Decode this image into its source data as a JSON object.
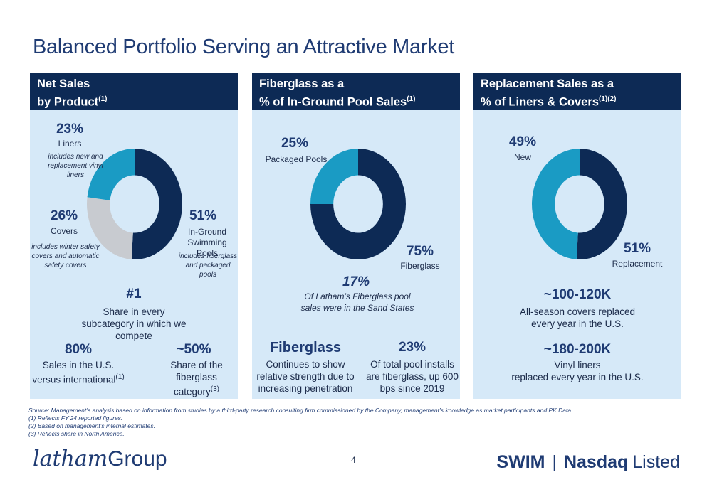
{
  "title": "Balanced Portfolio Serving an Attractive Market",
  "colors": {
    "navy": "#0d2a55",
    "teal": "#1a9bc4",
    "gray": "#c8cbd0",
    "panel_bg": "#d6e9f8"
  },
  "panel1": {
    "head_line1": "Net Sales",
    "head_line2": "by Product",
    "head_sup": "(1)",
    "liners_pct": "23%",
    "liners_label": "Liners",
    "liners_note": "includes new and replacement vinyl liners",
    "covers_pct": "26%",
    "covers_label": "Covers",
    "covers_note": "includes winter safety covers and automatic safety covers",
    "pools_pct": "51%",
    "pools_label": "In-Ground Swimming Pools",
    "pools_note": "includes fiberglass and packaged pools",
    "rank": "#1",
    "rank_text": "Share in every subcategory in which we compete",
    "us_pct": "80%",
    "us_text": "Sales in the U.S. versus international",
    "us_sup": "(1)",
    "share_pct": "~50%",
    "share_text": "Share of the fiberglass category",
    "share_sup": "(3)"
  },
  "panel2": {
    "head_line1": "Fiberglass as a",
    "head_line2": "% of In-Ground Pool Sales",
    "head_sup": "(1)",
    "packaged_pct": "25%",
    "packaged_label": "Packaged Pools",
    "fiberglass_pct": "75%",
    "fiberglass_label": "Fiberglass",
    "sand_pct": "17%",
    "sand_text": "Of Latham’s Fiberglass pool sales were in the Sand States",
    "fg_title": "Fiberglass",
    "fg_text": "Continues to show relative strength due to increasing penetration",
    "installs_pct": "23%",
    "installs_text": "Of total pool installs are fiberglass, up 600 bps since 2019"
  },
  "panel3": {
    "head_line1": "Replacement Sales as a",
    "head_line2": "% of Liners & Covers",
    "head_sup": "(1)(2)",
    "new_pct": "49%",
    "new_label": "New",
    "repl_pct": "51%",
    "repl_label": "Replacement",
    "covers_range": "~100-120K",
    "covers_text": "All-season covers replaced every year in the U.S.",
    "liners_range": "~180-200K",
    "liners_text1": "Vinyl liners",
    "liners_text2": "replaced every year in the U.S."
  },
  "footnotes": {
    "source": "Source: Management’s analysis based on information from studies by a third-party research consulting firm commissioned by the Company, management’s knowledge as market participants and PK Data.",
    "n1": "(1) Reflects FY’24 reported figures.",
    "n2": "(2) Based on management’s internal estimates.",
    "n3": "(3) Reflects share in North America."
  },
  "footer": {
    "logo_word": "latham",
    "logo_group": "Group",
    "page": "4",
    "ticker_swim": "SWIM",
    "ticker_sep": "|",
    "ticker_nasdaq": "Nasdaq",
    "ticker_listed": "Listed"
  },
  "chart_data": [
    {
      "type": "pie",
      "categories": [
        "In-Ground Swimming Pools",
        "Covers",
        "Liners"
      ],
      "values": [
        51,
        26,
        23
      ],
      "colors": [
        "#0d2a55",
        "#c8cbd0",
        "#1a9bc4"
      ]
    },
    {
      "type": "pie",
      "categories": [
        "Fiberglass",
        "Packaged Pools"
      ],
      "values": [
        75,
        25
      ],
      "colors": [
        "#0d2a55",
        "#1a9bc4"
      ]
    },
    {
      "type": "pie",
      "categories": [
        "Replacement",
        "New"
      ],
      "values": [
        51,
        49
      ],
      "colors": [
        "#0d2a55",
        "#1a9bc4"
      ]
    }
  ]
}
